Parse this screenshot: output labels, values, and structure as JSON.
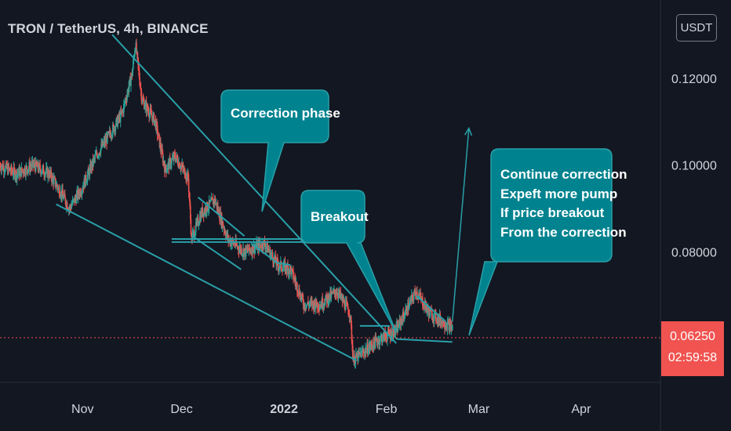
{
  "header": {
    "title": "TRON / TetherUS, 4h, BINANCE",
    "currency": "USDT"
  },
  "price_label": {
    "price": "0.06250",
    "countdown": "02:59:58"
  },
  "colors": {
    "background": "#131722",
    "up": "#26a69a",
    "down": "#ef5350",
    "annotation": "#29a0a8",
    "callout_fill": "#00838f",
    "price_line": "#f05350"
  },
  "callouts": [
    {
      "lines": [
        "Correction phase"
      ]
    },
    {
      "lines": [
        "Breakout"
      ]
    },
    {
      "lines": [
        "Continue correction",
        "Expeft more pump",
        "If price breakout",
        "From the correction"
      ]
    }
  ],
  "chart_data": {
    "type": "candlestick",
    "symbol": "TRON / TetherUS",
    "interval": "4h",
    "exchange": "BINANCE",
    "y_ticks": [
      "0.12000",
      "0.10000",
      "0.08000"
    ],
    "y_tick_values": [
      0.12,
      0.1,
      0.08
    ],
    "x_ticks": [
      "Nov",
      "Dec",
      "2022",
      "Feb",
      "Mar",
      "Apr"
    ],
    "x_tick_dates": [
      "2021-11-01",
      "2021-12-01",
      "2022-01-01",
      "2022-02-01",
      "2022-03-01",
      "2022-04-01"
    ],
    "last_price": 0.0625,
    "ylim": [
      0.05,
      0.138
    ],
    "xlim": [
      "2021-10-07",
      "2022-04-25"
    ],
    "price_path": [
      [
        "2021-10-07",
        0.1
      ],
      [
        "2021-10-12",
        0.098
      ],
      [
        "2021-10-17",
        0.1
      ],
      [
        "2021-10-22",
        0.098
      ],
      [
        "2021-10-26",
        0.093
      ],
      [
        "2021-10-28",
        0.09
      ],
      [
        "2021-11-01",
        0.095
      ],
      [
        "2021-11-05",
        0.102
      ],
      [
        "2021-11-10",
        0.108
      ],
      [
        "2021-11-13",
        0.112
      ],
      [
        "2021-11-16",
        0.121
      ],
      [
        "2021-11-17",
        0.128
      ],
      [
        "2021-11-19",
        0.115
      ],
      [
        "2021-11-23",
        0.11
      ],
      [
        "2021-11-26",
        0.099
      ],
      [
        "2021-11-29",
        0.102
      ],
      [
        "2021-12-03",
        0.097
      ],
      [
        "2021-12-04",
        0.083
      ],
      [
        "2021-12-07",
        0.089
      ],
      [
        "2021-12-11",
        0.092
      ],
      [
        "2021-12-15",
        0.083
      ],
      [
        "2021-12-20",
        0.08
      ],
      [
        "2021-12-26",
        0.082
      ],
      [
        "2021-12-30",
        0.077
      ],
      [
        "2022-01-03",
        0.076
      ],
      [
        "2022-01-07",
        0.068
      ],
      [
        "2022-01-12",
        0.068
      ],
      [
        "2022-01-17",
        0.071
      ],
      [
        "2022-01-21",
        0.066
      ],
      [
        "2022-01-22",
        0.055
      ],
      [
        "2022-01-25",
        0.057
      ],
      [
        "2022-01-30",
        0.06
      ],
      [
        "2022-02-04",
        0.062
      ],
      [
        "2022-02-08",
        0.068
      ],
      [
        "2022-02-10",
        0.071
      ],
      [
        "2022-02-14",
        0.066
      ],
      [
        "2022-02-18",
        0.064
      ],
      [
        "2022-02-21",
        0.0625
      ]
    ],
    "annotations": {
      "trendlines": [
        [
          [
            "2021-11-10",
            0.13
          ],
          [
            "2022-02-04",
            0.059
          ]
        ],
        [
          [
            "2021-10-24",
            0.091
          ],
          [
            "2022-01-23",
            0.055
          ]
        ],
        [
          [
            "2021-11-28",
            0.0823
          ],
          [
            "2022-01-09",
            0.0823
          ]
        ],
        [
          [
            "2021-11-28",
            0.083
          ],
          [
            "2022-01-09",
            0.083
          ]
        ],
        [
          [
            "2021-12-04",
            0.0838
          ],
          [
            "2021-12-19",
            0.076
          ]
        ],
        [
          [
            "2021-12-06",
            0.0926
          ],
          [
            "2021-12-20",
            0.0837
          ]
        ],
        [
          [
            "2021-12-22",
            0.082
          ],
          [
            "2021-12-30",
            0.0775
          ]
        ],
        [
          [
            "2021-12-30",
            0.0775
          ],
          [
            "2022-01-03",
            0.077
          ]
        ],
        [
          [
            "2022-01-24",
            0.063
          ],
          [
            "2022-02-02",
            0.063
          ]
        ],
        [
          [
            "2022-02-04",
            0.06
          ],
          [
            "2022-02-21",
            0.0593
          ]
        ],
        [
          [
            "2022-02-10",
            0.07
          ],
          [
            "2022-02-19",
            0.064
          ]
        ]
      ],
      "arrow": [
        [
          "2022-02-21",
          0.064
        ],
        [
          "2022-02-26",
          0.1085
        ]
      ]
    }
  }
}
